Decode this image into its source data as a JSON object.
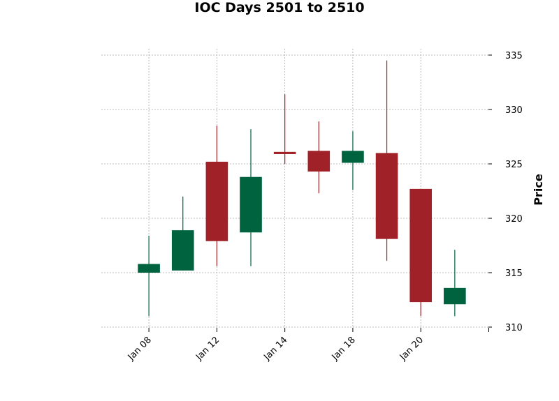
{
  "chart_data": {
    "type": "candlestick",
    "title": "IOC Days 2501 to 2510",
    "ylabel": "Price",
    "xlabel": "",
    "ylim": [
      310,
      335
    ],
    "yticks": [
      310,
      315,
      320,
      325,
      330,
      335
    ],
    "xlim": [
      -1.4,
      9.99
    ],
    "xticks": [
      {
        "index": 0,
        "label": "Jan 08"
      },
      {
        "index": 2,
        "label": "Jan 12"
      },
      {
        "index": 4,
        "label": "Jan 14"
      },
      {
        "index": 6,
        "label": "Jan 18"
      },
      {
        "index": 8,
        "label": "Jan 20"
      },
      {
        "index": 10,
        "label": ""
      }
    ],
    "colors": {
      "up": "#006340",
      "down": "#a02128"
    },
    "grid": true,
    "y_axis_side": "right",
    "candles": [
      {
        "index": 0,
        "open": 315.0,
        "high": 318.4,
        "low": 311.0,
        "close": 315.8
      },
      {
        "index": 1,
        "open": 315.2,
        "high": 322.0,
        "low": 315.2,
        "close": 318.9
      },
      {
        "index": 2,
        "open": 325.2,
        "high": 328.5,
        "low": 315.6,
        "close": 317.9
      },
      {
        "index": 3,
        "open": 318.7,
        "high": 328.2,
        "low": 315.6,
        "close": 323.8
      },
      {
        "index": 4,
        "open": 326.1,
        "high": 331.4,
        "low": 325.0,
        "close": 325.9
      },
      {
        "index": 5,
        "open": 326.2,
        "high": 328.9,
        "low": 322.3,
        "close": 324.3
      },
      {
        "index": 6,
        "open": 325.1,
        "high": 328.0,
        "low": 322.6,
        "close": 326.2
      },
      {
        "index": 7,
        "open": 326.0,
        "high": 334.5,
        "low": 316.1,
        "close": 318.1
      },
      {
        "index": 8,
        "open": 322.7,
        "high": 322.7,
        "low": 311.0,
        "close": 312.3
      },
      {
        "index": 9,
        "open": 312.1,
        "high": 317.1,
        "low": 311.0,
        "close": 313.6
      }
    ]
  }
}
